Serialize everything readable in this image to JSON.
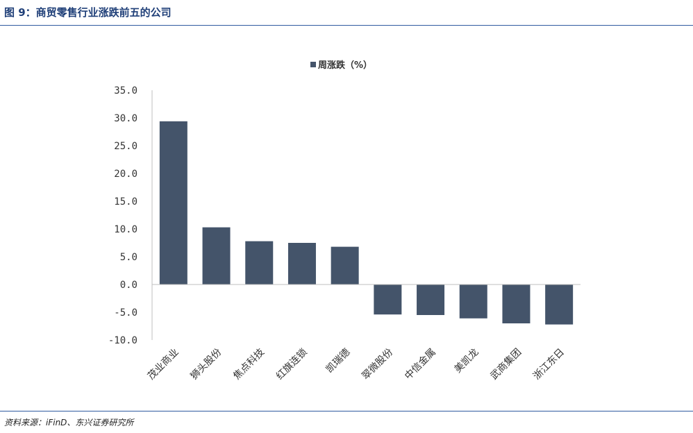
{
  "header": {
    "title": "图 9：商贸零售行业涨跌前五的公司"
  },
  "footer": {
    "source": "资料来源：iFinD、东兴证券研究所"
  },
  "colors": {
    "bar": "#44546a",
    "axis": "#bfbfbf",
    "rule": "#2e5aa0",
    "title": "#1f3f78"
  },
  "chart_data": {
    "type": "bar",
    "title": "",
    "xlabel": "",
    "ylabel": "",
    "legend": {
      "position": "top",
      "entries": [
        "周涨跌（%）"
      ]
    },
    "categories": [
      "茂业商业",
      "狮头股份",
      "焦点科技",
      "红旗连锁",
      "凯瑞德",
      "翠微股份",
      "中信金属",
      "美凯龙",
      "武商集团",
      "浙江东日"
    ],
    "series": [
      {
        "name": "周涨跌（%）",
        "values": [
          29.4,
          10.3,
          7.8,
          7.5,
          6.8,
          -5.4,
          -5.5,
          -6.1,
          -7.0,
          -7.2
        ]
      }
    ],
    "yticks": [
      "35.0",
      "30.0",
      "25.0",
      "20.0",
      "15.0",
      "10.0",
      "5.0",
      "0.0",
      "-5.0",
      "-10.0"
    ],
    "ylim": [
      -10,
      35
    ],
    "grid": false
  }
}
